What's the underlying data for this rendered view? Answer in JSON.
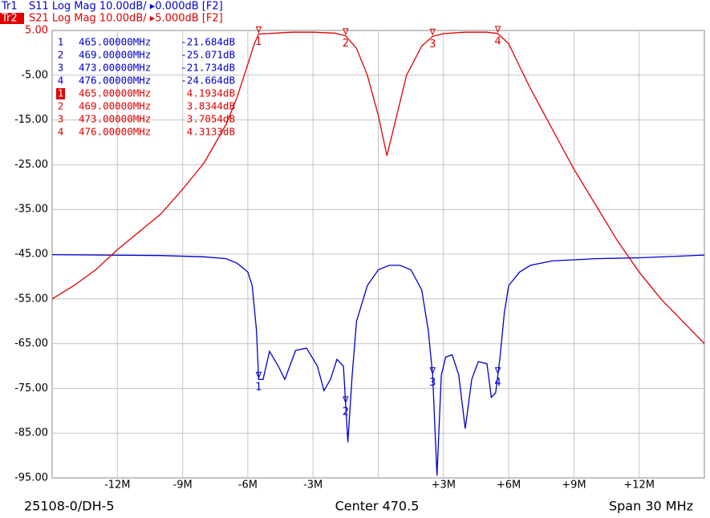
{
  "chart_data": {
    "type": "line",
    "header": [
      {
        "trace": "Tr1",
        "text": "S11 Log Mag 10.00dB/ ▸0.000dB [F2]",
        "color": "#0000cc"
      },
      {
        "trace": "Tr2",
        "text": "S21 Log Mag 10.00dB/ ▸5.000dB [F2]",
        "color": "#e00000"
      }
    ],
    "xlim": [
      -15,
      15
    ],
    "xticks": [
      {
        "value": -12,
        "label": "-12M"
      },
      {
        "value": -9,
        "label": "-9M"
      },
      {
        "value": -6,
        "label": "-6M"
      },
      {
        "value": -3,
        "label": "-3M"
      },
      {
        "value": 3,
        "label": "+3M"
      },
      {
        "value": 6,
        "label": "+6M"
      },
      {
        "value": 9,
        "label": "+9M"
      },
      {
        "value": 12,
        "label": "+12M"
      }
    ],
    "ylim": [
      -95,
      5
    ],
    "yticks": [
      {
        "value": 5,
        "label": "5.00"
      },
      {
        "value": -5,
        "label": "-5.00"
      },
      {
        "value": -15,
        "label": "-15.00"
      },
      {
        "value": -25,
        "label": "-25.00"
      },
      {
        "value": -35,
        "label": "-35.00"
      },
      {
        "value": -45,
        "label": "-45.00"
      },
      {
        "value": -55,
        "label": "-55.00"
      },
      {
        "value": -65,
        "label": "-65.00"
      },
      {
        "value": -75,
        "label": "-75.00"
      },
      {
        "value": -85,
        "label": "-85.00"
      },
      {
        "value": -95,
        "label": "-95.00"
      }
    ],
    "grid": true,
    "series": [
      {
        "name": "S11",
        "color": "#0000cc",
        "x": [
          -15,
          -10,
          -8,
          -7,
          -6.5,
          -6,
          -5.8,
          -5.6,
          -5.5,
          -5.3,
          -5,
          -4.6,
          -4.3,
          -3.8,
          -3.3,
          -2.8,
          -2.5,
          -2.2,
          -1.9,
          -1.6,
          -1.4,
          -1.2,
          -1,
          -0.5,
          0,
          0.5,
          1,
          1.5,
          2,
          2.3,
          2.5,
          2.7,
          2.9,
          3.1,
          3.4,
          3.7,
          4,
          4.3,
          4.6,
          5,
          5.2,
          5.4,
          5.6,
          5.8,
          6,
          6.5,
          7,
          8,
          10,
          12,
          15
        ],
        "values": [
          -45.1,
          -45.3,
          -45.6,
          -46,
          -47,
          -49,
          -52,
          -62,
          -73,
          -73,
          -66.7,
          -70,
          -73,
          -66.5,
          -66,
          -70,
          -75.5,
          -73,
          -68.5,
          -70,
          -87,
          -72,
          -60,
          -52,
          -48.5,
          -47.5,
          -47.5,
          -48.5,
          -53,
          -62,
          -72,
          -94.5,
          -72,
          -68,
          -67.5,
          -72,
          -84,
          -73,
          -69,
          -69.5,
          -77,
          -76,
          -68,
          -58,
          -52,
          -49,
          -47.5,
          -46.5,
          -46,
          -45.8,
          -45.2
        ]
      },
      {
        "name": "S21",
        "color": "#e00000",
        "x": [
          -15,
          -14,
          -13,
          -12,
          -11,
          -10,
          -9,
          -8,
          -7,
          -6.5,
          -6,
          -5.7,
          -5.5,
          -4,
          -3,
          -2,
          -1.5,
          -1,
          -0.5,
          0,
          0.4,
          0.8,
          1.3,
          2,
          2.5,
          3,
          4,
          5,
          5.5,
          6,
          6.5,
          7,
          8,
          9,
          10,
          11,
          12,
          13,
          14,
          15
        ],
        "values": [
          -55,
          -52,
          -48.5,
          -44,
          -40,
          -36,
          -30.5,
          -24.5,
          -16,
          -10,
          -2.5,
          2,
          4.2,
          4.6,
          4.6,
          4.4,
          3.8,
          1,
          -5,
          -14,
          -23,
          -15,
          -5,
          1.5,
          3.7,
          4.3,
          4.6,
          4.6,
          4.3,
          2,
          -3,
          -8,
          -17,
          -26,
          -34,
          -42,
          -49,
          -55,
          -60,
          -65
        ]
      }
    ],
    "marker_x": [
      -5.5,
      -1.5,
      2.5,
      5.5
    ],
    "marker_tables": [
      {
        "color": "#0000cc",
        "rows": [
          [
            "1",
            "465.00000MHz",
            "-21.684dB"
          ],
          [
            "2",
            "469.00000MHz",
            "-25.071dB"
          ],
          [
            "3",
            "473.00000MHz",
            "-21.734dB"
          ],
          [
            "4",
            "476.00000MHz",
            "-24.664dB"
          ]
        ]
      },
      {
        "color": "#e00000",
        "rows": [
          [
            "1",
            "465.00000MHz",
            "4.1934dB"
          ],
          [
            "2",
            "469.00000MHz",
            "3.8344dB"
          ],
          [
            "3",
            "473.00000MHz",
            "3.7054dB"
          ],
          [
            "4",
            "476.00000MHz",
            "4.3133dB"
          ]
        ]
      }
    ],
    "footer": {
      "left": "25108-0/DH-5",
      "center": "Center 470.5",
      "right": "Span 30 MHz"
    }
  }
}
